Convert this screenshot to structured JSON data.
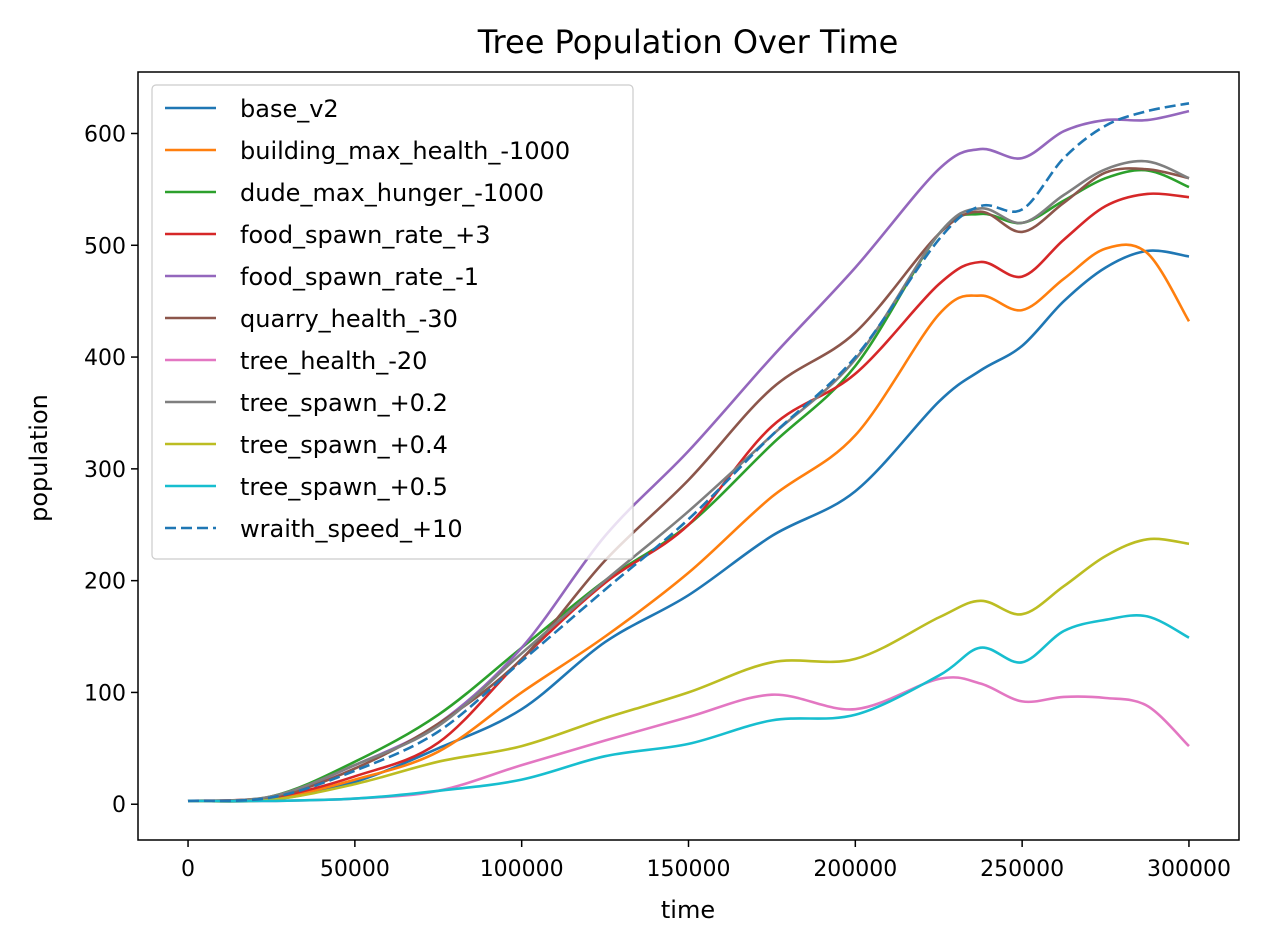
{
  "chart_data": {
    "type": "line",
    "title": "Tree Population Over Time",
    "xlabel": "time",
    "ylabel": "population",
    "xlim": [
      -15000,
      315000
    ],
    "ylim": [
      -32,
      655
    ],
    "xticks": [
      0,
      50000,
      100000,
      150000,
      200000,
      250000,
      300000
    ],
    "xtick_labels": [
      "0",
      "50000",
      "100000",
      "150000",
      "200000",
      "250000",
      "300000"
    ],
    "yticks": [
      0,
      100,
      200,
      300,
      400,
      500,
      600
    ],
    "ytick_labels": [
      "0",
      "100",
      "200",
      "300",
      "400",
      "500",
      "600"
    ],
    "grid": false,
    "legend_position": "upper-left",
    "x": [
      0,
      25000,
      50000,
      75000,
      100000,
      125000,
      150000,
      175000,
      200000,
      225000,
      237500,
      250000,
      262500,
      275000,
      287500,
      300000
    ],
    "series": [
      {
        "name": "base_v2",
        "color": "#1f77b4",
        "dash": "solid",
        "values": [
          3,
          4,
          20,
          50,
          85,
          145,
          187,
          240,
          280,
          360,
          388,
          410,
          450,
          480,
          495,
          490
        ]
      },
      {
        "name": "building_max_health_-1000",
        "color": "#ff7f0e",
        "dash": "solid",
        "values": [
          3,
          5,
          22,
          47,
          100,
          150,
          207,
          275,
          330,
          438,
          455,
          442,
          470,
          497,
          493,
          432
        ]
      },
      {
        "name": "dude_max_hunger_-1000",
        "color": "#2ca02c",
        "dash": "solid",
        "values": [
          3,
          7,
          38,
          80,
          140,
          200,
          250,
          322,
          392,
          510,
          528,
          520,
          540,
          560,
          567,
          552
        ]
      },
      {
        "name": "food_spawn_rate_+3",
        "color": "#d62728",
        "dash": "solid",
        "values": [
          3,
          6,
          25,
          55,
          130,
          198,
          250,
          338,
          385,
          465,
          485,
          472,
          505,
          535,
          546,
          543
        ]
      },
      {
        "name": "food_spawn_rate_-1",
        "color": "#9467bd",
        "dash": "solid",
        "values": [
          3,
          6,
          35,
          72,
          140,
          240,
          316,
          400,
          480,
          568,
          586,
          578,
          602,
          612,
          612,
          620
        ]
      },
      {
        "name": "quarry_health_-30",
        "color": "#8c564b",
        "dash": "solid",
        "values": [
          3,
          6,
          32,
          72,
          130,
          218,
          290,
          372,
          422,
          510,
          530,
          512,
          538,
          565,
          568,
          560
        ]
      },
      {
        "name": "tree_health_-20",
        "color": "#e377c2",
        "dash": "solid",
        "values": [
          3,
          3,
          5,
          12,
          35,
          57,
          78,
          98,
          85,
          112,
          108,
          92,
          96,
          95,
          88,
          52
        ]
      },
      {
        "name": "tree_spawn_+0.2",
        "color": "#7f7f7f",
        "dash": "solid",
        "values": [
          3,
          7,
          35,
          70,
          135,
          200,
          262,
          330,
          398,
          510,
          533,
          520,
          545,
          568,
          575,
          560
        ]
      },
      {
        "name": "tree_spawn_+0.4",
        "color": "#bcbd22",
        "dash": "solid",
        "values": [
          3,
          4,
          18,
          38,
          52,
          77,
          100,
          127,
          130,
          167,
          182,
          170,
          195,
          222,
          237,
          233
        ]
      },
      {
        "name": "tree_spawn_+0.5",
        "color": "#17becf",
        "dash": "solid",
        "values": [
          3,
          3,
          5,
          12,
          22,
          43,
          54,
          75,
          80,
          115,
          140,
          127,
          155,
          165,
          168,
          149
        ]
      },
      {
        "name": "wraith_speed_+10",
        "color": "#1f77b4",
        "dash": "dashed",
        "values": [
          3,
          6,
          30,
          65,
          128,
          192,
          255,
          330,
          400,
          505,
          535,
          532,
          578,
          607,
          620,
          627
        ]
      }
    ]
  }
}
